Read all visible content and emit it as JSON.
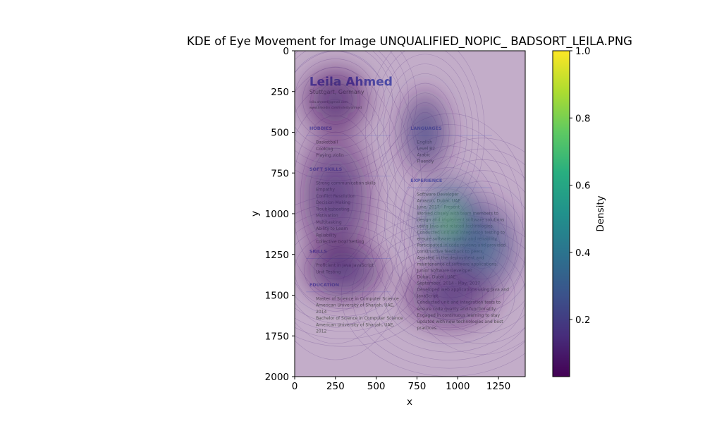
{
  "chart_data": {
    "type": "heatmap",
    "title": "KDE of Eye Movement for Image UNQUALIFIED_NOPIC_ BADSORT_LEILA.PNG",
    "xlabel": "x",
    "ylabel": "y",
    "xlim": [
      0,
      1414
    ],
    "ylim": [
      2000,
      0
    ],
    "x_ticks": [
      "0",
      "250",
      "500",
      "750",
      "1000",
      "1250"
    ],
    "y_ticks": [
      "0",
      "250",
      "500",
      "750",
      "1000",
      "1250",
      "1500",
      "1750",
      "2000"
    ],
    "x_tick_values": [
      0,
      250,
      500,
      750,
      1000,
      1250
    ],
    "y_tick_values": [
      0,
      250,
      500,
      750,
      1000,
      1250,
      1500,
      1750,
      2000
    ],
    "colorbar": {
      "label": "Density",
      "colormap": "viridis",
      "range": [
        0.03,
        1.0
      ],
      "ticks": [
        "0.2",
        "0.4",
        "0.6",
        "0.8",
        "1.0"
      ],
      "tick_values": [
        0.2,
        0.4,
        0.6,
        0.8,
        1.0
      ]
    },
    "density_hotspots": [
      {
        "x": 950,
        "y": 1050,
        "sx": 150,
        "sy": 200,
        "weight": 1.0
      },
      {
        "x": 1150,
        "y": 1200,
        "sx": 160,
        "sy": 200,
        "weight": 0.55
      },
      {
        "x": 800,
        "y": 500,
        "sx": 110,
        "sy": 180,
        "weight": 0.35
      },
      {
        "x": 250,
        "y": 900,
        "sx": 160,
        "sy": 300,
        "weight": 0.2
      },
      {
        "x": 300,
        "y": 1350,
        "sx": 180,
        "sy": 140,
        "weight": 0.2
      },
      {
        "x": 950,
        "y": 1500,
        "sx": 200,
        "sy": 150,
        "weight": 0.18
      },
      {
        "x": 250,
        "y": 300,
        "sx": 150,
        "sy": 150,
        "weight": 0.12
      }
    ],
    "background_image": {
      "name": "Leila Ahmed",
      "location": "Stuttgart, Germany",
      "contact_lines": [
        "leila.ahmed@gmail.com",
        "www.linkedin.com/in/leila-ahmed"
      ],
      "sections_left": [
        {
          "heading": "HOBBIES",
          "items": [
            "Basketball",
            "Cooking",
            "Playing violin"
          ]
        },
        {
          "heading": "SOFT SKILLS",
          "items": [
            "Strong communication skills",
            "Empathy",
            "Conflict Resolution",
            "Decision Making",
            "Troubleshooting",
            "Motivation",
            "Multitasking",
            "Ability to Learn",
            "Reliability",
            "Collective Goal Setting"
          ]
        },
        {
          "heading": "SKILLS",
          "items": [
            "Proficient in Java JavaScript",
            "Unit Testing"
          ]
        },
        {
          "heading": "EDUCATION",
          "items": [
            "Master of Science in Computer Science",
            "American University of Sharjah, UAE,",
            "2014",
            "Bachelor of Science in Computer Science",
            "American University of Sharjah, UAE,",
            "2012"
          ]
        }
      ],
      "sections_right": [
        {
          "heading": "LANGUAGES",
          "items": [
            "English",
            "Level B2",
            "Arabic",
            "Fluently"
          ]
        },
        {
          "heading": "EXPERIENCE",
          "items": [
            "Software Developer",
            "Amazon, Dubai, UAE",
            "June, 2017 - Present",
            "Worked closely with team members to",
            "design and implement software solutions",
            "using Java and related technologies.",
            "Conducted unit and integration testing to",
            "ensure software quality and reliability.",
            "Participated in code reviews and provided",
            "constructive feedback to peers.",
            "Assisted in the deployment and",
            "maintenance of software applications.",
            "Junior Software Developer",
            "Dubai, Dubai, UAE",
            "September, 2014 - May, 2017",
            "Developed web applications using Java and",
            "JavaScript.",
            "Conducted unit and integration tests to",
            "ensure code quality and functionality.",
            "Engaged in continuous learning to stay",
            "updated with new technologies and best",
            "practices."
          ]
        }
      ]
    }
  }
}
